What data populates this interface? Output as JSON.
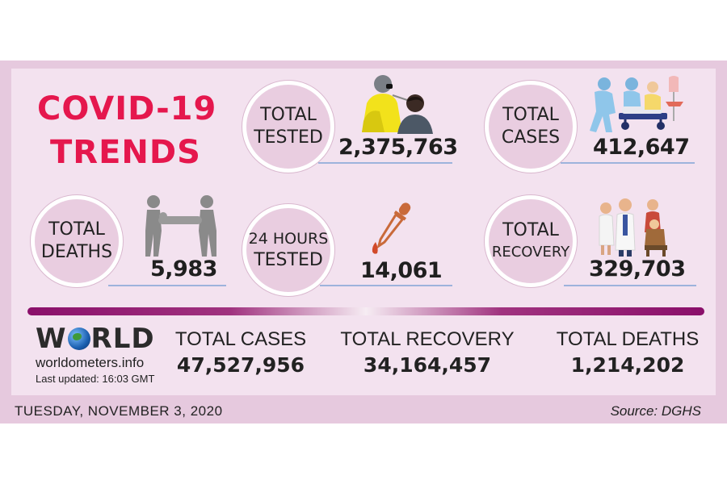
{
  "title": {
    "line1": "COVID-19",
    "line2": "TRENDS"
  },
  "stats": {
    "tested": {
      "label1": "TOTAL",
      "label2": "TESTED",
      "value": "2,375,763",
      "icon": "swab-test-icon"
    },
    "cases": {
      "label1": "TOTAL",
      "label2": "CASES",
      "value": "412,647",
      "icon": "hospital-stretcher-icon"
    },
    "deaths": {
      "label1": "TOTAL",
      "label2": "DEATHS",
      "value": "5,983",
      "icon": "body-carriers-icon"
    },
    "tested24": {
      "label1": "24 HOURS",
      "label2": "TESTED",
      "value": "14,061",
      "icon": "dropper-icon"
    },
    "recovery": {
      "label1": "TOTAL",
      "label2": "RECOVERY",
      "value": "329,703",
      "icon": "doctors-family-icon"
    }
  },
  "world": {
    "logo_left": "W",
    "logo_right": "RLD",
    "site": "worldometers.info",
    "updated": "Last updated: 16:03 GMT",
    "cases_label": "TOTAL CASES",
    "cases_value": "47,527,956",
    "recovery_label": "TOTAL RECOVERY",
    "recovery_value": "34,164,457",
    "deaths_label": "TOTAL DEATHS",
    "deaths_value": "1,214,202"
  },
  "footer": {
    "date": "TUESDAY, NOVEMBER 3, 2020",
    "source": "Source: DGHS"
  },
  "colors": {
    "title": "#e5174d",
    "frame": "#e6c9de",
    "panel": "#f3e2ef",
    "circle": "#e9cde0",
    "divider": "#8a0f6a"
  }
}
